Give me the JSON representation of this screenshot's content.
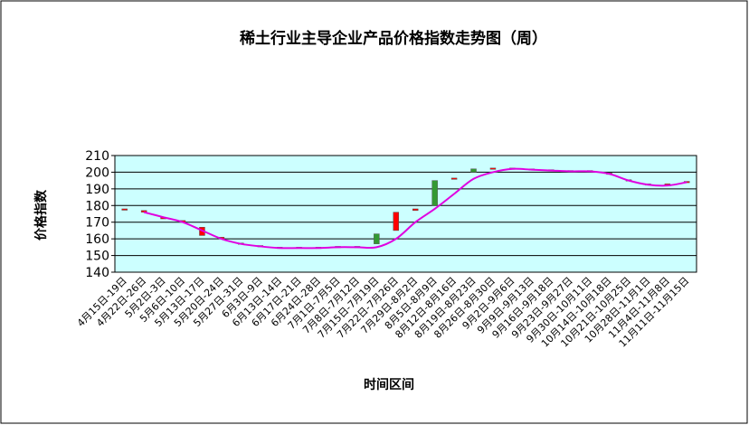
{
  "chart_data": {
    "type": "candlestick",
    "title": "稀土行业主导企业产品价格指数走势图（周）",
    "x_label": "时间区间",
    "y_label": "价格指数",
    "categories": [
      "4月15日-19日",
      "4月22日-26日",
      "5月2日-3日",
      "5月6日-10日",
      "5月13日-17日",
      "5月20日-24日",
      "5月27日-31日",
      "6月3日-9日",
      "6月13日-14日",
      "6月17日-21日",
      "6月24日-28日",
      "7月1日-7月5日",
      "7月8日-7月12日",
      "7月15日-7月19日",
      "7月22日-7月26日",
      "7月29日-8月2日",
      "8月5日-8月9日",
      "8月12日-8月16日",
      "8月19日-8月23日",
      "8月26日-8月30日",
      "9月2日-9月6日",
      "9月9日-9月13日",
      "9月16日-9月18日",
      "9月23日-9月27日",
      "9月30日-10月11日",
      "10月14日-10月18日",
      "10月21日-10月25日",
      "10月28日-11月1日",
      "11月4日-11月8日",
      "11月11日-11月15日"
    ],
    "open": [
      177.5,
      176,
      172,
      170,
      162,
      160,
      157,
      155.5,
      154.5,
      154.5,
      154.5,
      155,
      155,
      163,
      165,
      177,
      195,
      196,
      202,
      202,
      202,
      201.5,
      201,
      200.5,
      200.5,
      199,
      195,
      192.5,
      192,
      194
    ],
    "close": [
      178,
      177,
      173,
      171,
      167,
      161,
      157.5,
      156,
      155,
      155,
      155,
      155.5,
      155.5,
      157,
      176,
      178,
      180,
      196.5,
      200,
      202.5,
      202.5,
      202,
      201.5,
      201,
      201,
      199.5,
      195.5,
      193,
      193,
      194.5
    ],
    "line": [
      null,
      176,
      173,
      170,
      165,
      160,
      157,
      155.5,
      154.5,
      154.5,
      154.5,
      155,
      155,
      155,
      160,
      170,
      178,
      187,
      196,
      200,
      202,
      201.5,
      201,
      200.5,
      200.5,
      199,
      195,
      192.5,
      192,
      194
    ],
    "ylim": [
      140,
      210
    ],
    "yticks": [
      140,
      150,
      160,
      170,
      180,
      190,
      200,
      210
    ],
    "grid": true,
    "up_color": "#ff0000",
    "down_color": "#339933",
    "line_color": "#e000e0",
    "plot_background": "#ccffff"
  }
}
